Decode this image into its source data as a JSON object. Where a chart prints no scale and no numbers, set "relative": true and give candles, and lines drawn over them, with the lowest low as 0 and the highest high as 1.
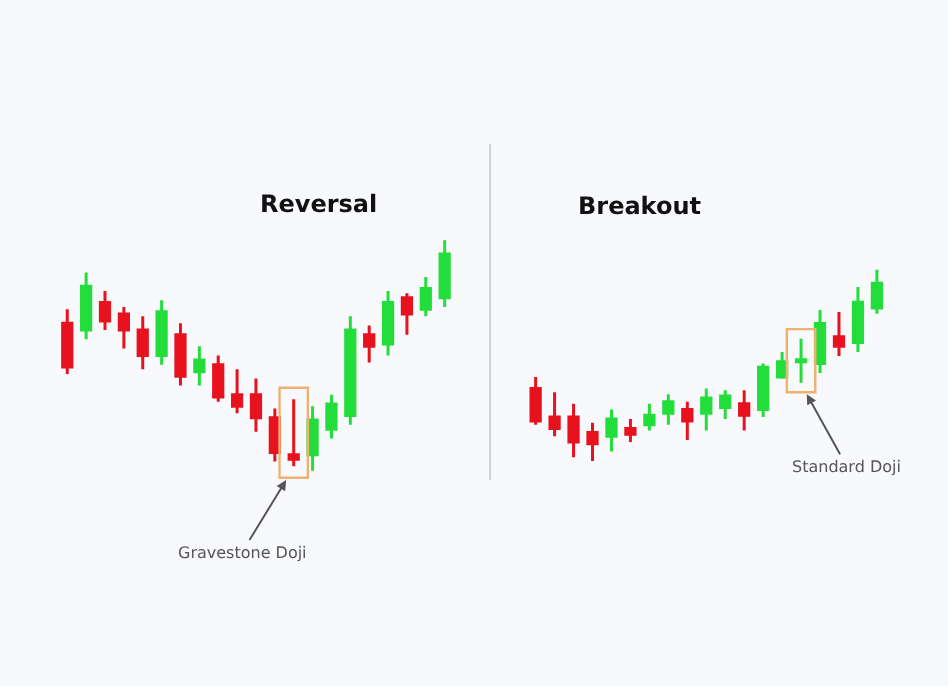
{
  "chart_data": [
    {
      "type": "candlestick",
      "title": "Reversal",
      "relative": true,
      "annotations": [
        "Gravestone Doji"
      ],
      "categories": [
        null,
        null,
        null,
        null,
        null,
        null,
        null,
        null,
        null,
        null,
        null,
        null,
        null,
        null,
        null,
        null,
        null,
        null,
        null,
        null,
        null
      ],
      "ohlc": [
        [
          0.64,
          0.7,
          0.42,
          0.45
        ],
        [
          0.61,
          0.86,
          0.57,
          0.8
        ],
        [
          0.73,
          0.78,
          0.61,
          0.65
        ],
        [
          0.68,
          0.71,
          0.53,
          0.61
        ],
        [
          0.61,
          0.67,
          0.44,
          0.5
        ],
        [
          0.5,
          0.74,
          0.46,
          0.69
        ],
        [
          0.59,
          0.64,
          0.37,
          0.41
        ],
        [
          0.43,
          0.54,
          0.37,
          0.48
        ],
        [
          0.46,
          0.5,
          0.3,
          0.32
        ],
        [
          0.33,
          0.44,
          0.25,
          0.28
        ],
        [
          0.33,
          0.4,
          0.17,
          0.23
        ],
        [
          0.23,
          0.27,
          0.04,
          0.08
        ],
        [
          0.07,
          0.31,
          0.02,
          0.05
        ],
        [
          0.07,
          0.28,
          0.0,
          0.22
        ],
        [
          0.18,
          0.33,
          0.14,
          0.29
        ],
        [
          0.24,
          0.67,
          0.2,
          0.61
        ],
        [
          0.59,
          0.63,
          0.47,
          0.54
        ],
        [
          0.55,
          0.78,
          0.5,
          0.73
        ],
        [
          0.75,
          0.77,
          0.59,
          0.68
        ],
        [
          0.7,
          0.84,
          0.67,
          0.79
        ],
        [
          0.75,
          1.0,
          0.71,
          0.94
        ]
      ],
      "colors": [
        "#e8121e",
        "#22dd3a",
        "#e8121e",
        "#e8121e",
        "#e8121e",
        "#22dd3a",
        "#e8121e",
        "#22dd3a",
        "#e8121e",
        "#e8121e",
        "#e8121e",
        "#e8121e",
        "#e8121e",
        "#22dd3a",
        "#22dd3a",
        "#22dd3a",
        "#e8121e",
        "#22dd3a",
        "#e8121e",
        "#22dd3a",
        "#22dd3a"
      ]
    },
    {
      "type": "candlestick",
      "title": "Breakout",
      "relative": true,
      "annotations": [
        "Standard Doji"
      ],
      "categories": [
        null,
        null,
        null,
        null,
        null,
        null,
        null,
        null,
        null,
        null,
        null,
        null,
        null,
        null,
        null,
        null,
        null,
        null,
        null
      ],
      "ohlc": [
        [
          0.38,
          0.44,
          0.19,
          0.21
        ],
        [
          0.23,
          0.36,
          0.13,
          0.17
        ],
        [
          0.23,
          0.3,
          0.02,
          0.1
        ],
        [
          0.15,
          0.2,
          0.0,
          0.09
        ],
        [
          0.13,
          0.27,
          0.05,
          0.22
        ],
        [
          0.17,
          0.22,
          0.1,
          0.14
        ],
        [
          0.19,
          0.3,
          0.16,
          0.24
        ],
        [
          0.25,
          0.35,
          0.19,
          0.31
        ],
        [
          0.27,
          0.31,
          0.11,
          0.21
        ],
        [
          0.25,
          0.38,
          0.16,
          0.33
        ],
        [
          0.28,
          0.37,
          0.22,
          0.34
        ],
        [
          0.3,
          0.37,
          0.16,
          0.24
        ],
        [
          0.27,
          0.51,
          0.23,
          0.49
        ],
        [
          0.44,
          0.57,
          0.43,
          0.52
        ],
        [
          0.52,
          0.64,
          0.41,
          0.53
        ],
        [
          0.51,
          0.79,
          0.46,
          0.72
        ],
        [
          0.65,
          0.78,
          0.55,
          0.6
        ],
        [
          0.62,
          0.91,
          0.57,
          0.83
        ],
        [
          0.8,
          1.0,
          0.77,
          0.93
        ]
      ],
      "colors": [
        "#e8121e",
        "#e8121e",
        "#e8121e",
        "#e8121e",
        "#22dd3a",
        "#e8121e",
        "#22dd3a",
        "#22dd3a",
        "#e8121e",
        "#22dd3a",
        "#22dd3a",
        "#e8121e",
        "#22dd3a",
        "#22dd3a",
        "#22dd3a",
        "#22dd3a",
        "#e8121e",
        "#22dd3a",
        "#22dd3a"
      ]
    }
  ]
}
